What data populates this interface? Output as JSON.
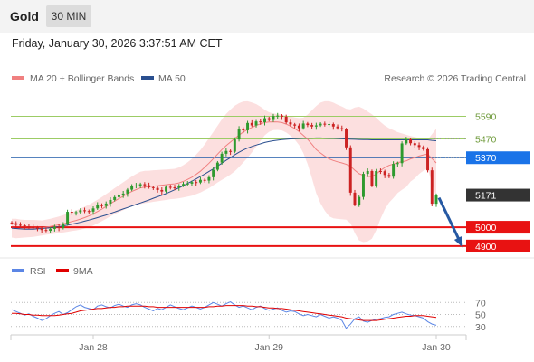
{
  "header": {
    "instrument": "Gold",
    "timeframe": "30 MIN"
  },
  "timestamp": "Friday, January 30, 2026 3:37:51 AM CET",
  "source": "Research © 2026 Trading Central",
  "colors": {
    "ma20": "#f08080",
    "ma50": "#2a4f8f",
    "bollinger": "#fbd4d4",
    "support": "#e81212",
    "resistance": "#9ccc65",
    "pivot": "#1e5aa8",
    "arrow": "#2659a3",
    "rsi": "#5b86e5",
    "rsi_ma": "#e00000",
    "current": "#333333",
    "candle_up": "#2e9a2e",
    "candle_down": "#cc2222"
  },
  "chart_data": [
    {
      "type": "candlestick",
      "title": "",
      "legend": [
        {
          "name": "MA 20 + Bollinger Bands",
          "color": "#f08080"
        },
        {
          "name": "MA 50",
          "color": "#2a4f8f"
        }
      ],
      "legend_position": "top-left",
      "x_ticks": [
        {
          "label": "Jan 28",
          "index": 19
        },
        {
          "label": "Jan 29",
          "index": 60
        },
        {
          "label": "Jan 30",
          "index": 99
        }
      ],
      "ylim": [
        4880,
        5660
      ],
      "levels": [
        {
          "value": 5590,
          "label": "5590",
          "kind": "resistance"
        },
        {
          "value": 5470,
          "label": "5470",
          "kind": "resistance"
        },
        {
          "value": 5370,
          "label": "5370",
          "kind": "pivot"
        },
        {
          "value": 5171,
          "label": "5171",
          "kind": "current"
        },
        {
          "value": 5000,
          "label": "5000",
          "kind": "support"
        },
        {
          "value": 4900,
          "label": "4900",
          "kind": "support"
        }
      ],
      "forecast_arrow": {
        "from": 5171,
        "to": 4905
      },
      "series": [
        {
          "name": "Price",
          "closes": [
            5021,
            5013,
            5010,
            5005,
            5000,
            4998,
            4993,
            4985,
            4981,
            4991,
            5002,
            4996,
            5019,
            5082,
            5079,
            5080,
            5090,
            5086,
            5083,
            5100,
            5119,
            5113,
            5126,
            5145,
            5160,
            5170,
            5179,
            5200,
            5218,
            5222,
            5229,
            5223,
            5213,
            5209,
            5198,
            5190,
            5215,
            5212,
            5211,
            5222,
            5230,
            5232,
            5240,
            5238,
            5252,
            5248,
            5266,
            5306,
            5344,
            5391,
            5406,
            5402,
            5467,
            5524,
            5516,
            5555,
            5542,
            5563,
            5559,
            5580,
            5571,
            5592,
            5594,
            5588,
            5558,
            5547,
            5541,
            5527,
            5552,
            5544,
            5536,
            5542,
            5551,
            5547,
            5549,
            5536,
            5527,
            5521,
            5425,
            5184,
            5119,
            5161,
            5284,
            5299,
            5221,
            5299,
            5298,
            5278,
            5269,
            5337,
            5341,
            5446,
            5467,
            5447,
            5437,
            5427,
            5415,
            5303,
            5125,
            5171
          ]
        },
        {
          "name": "MA 20",
          "values": [
            4995,
            4993,
            4992,
            4992,
            4993,
            4994,
            4995,
            4996,
            5000,
            5004,
            5008,
            5013,
            5018,
            5024,
            5030,
            5036,
            5043,
            5051,
            5060,
            5071,
            5083,
            5096,
            5110,
            5125,
            5139,
            5152,
            5165,
            5178,
            5190,
            5200,
            5209,
            5214,
            5216,
            5219,
            5221,
            5224,
            5226,
            5229,
            5231,
            5236,
            5244,
            5254,
            5266,
            5281,
            5298,
            5319,
            5341,
            5365,
            5389,
            5413,
            5434,
            5453,
            5472,
            5490,
            5507,
            5520,
            5531,
            5542,
            5550,
            5557,
            5560,
            5561,
            5560,
            5557,
            5549,
            5538,
            5525,
            5509,
            5489,
            5468,
            5442,
            5413,
            5395,
            5379,
            5364,
            5355,
            5348,
            5342,
            5335,
            5324,
            5303,
            5285,
            5276,
            5270,
            5270,
            5283,
            5302,
            5318,
            5329,
            5336,
            5344,
            5349,
            5353,
            5364,
            5370,
            5379,
            5385,
            5389,
            5365,
            5342
          ]
        },
        {
          "name": "MA 50",
          "values": [
            4995,
            4993,
            4991,
            4990,
            4990,
            4990,
            4991,
            4993,
            4995,
            4997,
            5000,
            5003,
            5007,
            5011,
            5016,
            5021,
            5026,
            5032,
            5038,
            5044,
            5051,
            5058,
            5065,
            5073,
            5081,
            5089,
            5097,
            5105,
            5113,
            5121,
            5129,
            5137,
            5145,
            5154,
            5162,
            5170,
            5179,
            5189,
            5199,
            5210,
            5221,
            5233,
            5245,
            5257,
            5270,
            5283,
            5297,
            5311,
            5326,
            5341,
            5356,
            5370,
            5385,
            5399,
            5411,
            5421,
            5430,
            5437,
            5444,
            5451,
            5456,
            5460,
            5463,
            5466,
            5468,
            5470,
            5471,
            5472,
            5473,
            5474,
            5474,
            5475,
            5475,
            5474,
            5473,
            5473,
            5472,
            5471,
            5470,
            5469,
            5468,
            5467,
            5466,
            5466,
            5465,
            5465,
            5465,
            5465,
            5465,
            5465,
            5465,
            5465,
            5465,
            5465,
            5465,
            5465,
            5465,
            5465,
            5462,
            5460
          ]
        },
        {
          "name": "Bollinger Upper",
          "values": [
            5045,
            5045,
            5041,
            5039,
            5039,
            5039,
            5038,
            5036,
            5040,
            5045,
            5051,
            5057,
            5064,
            5072,
            5080,
            5089,
            5099,
            5109,
            5120,
            5133,
            5146,
            5160,
            5176,
            5192,
            5208,
            5224,
            5239,
            5255,
            5270,
            5283,
            5295,
            5300,
            5301,
            5303,
            5304,
            5306,
            5307,
            5309,
            5311,
            5318,
            5330,
            5345,
            5364,
            5386,
            5411,
            5441,
            5474,
            5507,
            5540,
            5574,
            5603,
            5626,
            5646,
            5660,
            5669,
            5670,
            5664,
            5655,
            5641,
            5625,
            5612,
            5605,
            5602,
            5599,
            5594,
            5589,
            5584,
            5581,
            5583,
            5600,
            5622,
            5645,
            5663,
            5670,
            5670,
            5663,
            5652,
            5642,
            5630,
            5627,
            5637,
            5641,
            5631,
            5615,
            5601,
            5582,
            5560,
            5541,
            5527,
            5517,
            5506,
            5499,
            5492,
            5485,
            5480,
            5474,
            5469,
            5466,
            5495,
            5524
          ]
        },
        {
          "name": "Bollinger Lower",
          "values": [
            4945,
            4941,
            4943,
            4945,
            4947,
            4949,
            4952,
            4956,
            4960,
            4963,
            4965,
            4969,
            4972,
            4976,
            4980,
            4983,
            4987,
            4993,
            5000,
            5009,
            5020,
            5032,
            5044,
            5058,
            5070,
            5080,
            5091,
            5101,
            5110,
            5117,
            5123,
            5128,
            5131,
            5135,
            5138,
            5142,
            5145,
            5149,
            5151,
            5154,
            5158,
            5163,
            5168,
            5176,
            5185,
            5197,
            5208,
            5223,
            5238,
            5252,
            5265,
            5280,
            5298,
            5320,
            5345,
            5370,
            5398,
            5429,
            5459,
            5489,
            5508,
            5517,
            5518,
            5515,
            5504,
            5487,
            5466,
            5437,
            5395,
            5336,
            5262,
            5181,
            5127,
            5088,
            5058,
            5047,
            5044,
            5042,
            5040,
            5021,
            4969,
            4929,
            4921,
            4925,
            4939,
            4984,
            5044,
            5095,
            5131,
            5155,
            5182,
            5199,
            5214,
            5243,
            5260,
            5284,
            5301,
            5312,
            5235,
            5160
          ]
        }
      ]
    },
    {
      "type": "line",
      "title": "",
      "legend": [
        {
          "name": "RSI",
          "color": "#5b86e5"
        },
        {
          "name": "9MA",
          "color": "#e00000"
        }
      ],
      "legend_position": "top-left",
      "ylim": [
        10,
        90
      ],
      "y_ticks": [
        30,
        50,
        70
      ],
      "series": [
        {
          "name": "RSI",
          "values": [
            58,
            55,
            52,
            49,
            51,
            47,
            44,
            40,
            43,
            48,
            52,
            55,
            50,
            53,
            58,
            63,
            66,
            62,
            60,
            58,
            64,
            66,
            63,
            61,
            65,
            67,
            64,
            62,
            66,
            68,
            66,
            62,
            59,
            56,
            60,
            58,
            62,
            66,
            63,
            60,
            58,
            61,
            64,
            62,
            59,
            62,
            66,
            70,
            67,
            64,
            68,
            71,
            66,
            62,
            64,
            61,
            58,
            62,
            64,
            60,
            57,
            59,
            61,
            57,
            54,
            56,
            55,
            51,
            48,
            50,
            48,
            46,
            50,
            47,
            44,
            46,
            44,
            40,
            27,
            34,
            43,
            46,
            39,
            37,
            40,
            42,
            43,
            45,
            46,
            50,
            52,
            54,
            51,
            49,
            48,
            46,
            44,
            38,
            34,
            32
          ]
        },
        {
          "name": "9MA",
          "values": [
            52,
            52,
            51,
            50,
            50,
            49,
            49,
            48,
            48,
            48,
            48,
            49,
            50,
            51,
            52,
            54,
            56,
            57,
            58,
            59,
            60,
            60,
            61,
            62,
            62,
            63,
            63,
            64,
            64,
            64,
            64,
            64,
            63,
            63,
            62,
            62,
            62,
            62,
            62,
            62,
            62,
            62,
            62,
            62,
            62,
            62,
            63,
            63,
            64,
            64,
            65,
            65,
            65,
            65,
            65,
            64,
            64,
            63,
            63,
            62,
            61,
            61,
            60,
            60,
            59,
            58,
            57,
            56,
            55,
            54,
            53,
            52,
            51,
            50,
            49,
            48,
            47,
            46,
            44,
            43,
            42,
            41,
            40,
            40,
            40,
            40,
            41,
            42,
            43,
            44,
            45,
            46,
            47,
            47,
            48,
            48,
            48,
            47,
            46,
            45
          ]
        }
      ]
    }
  ]
}
